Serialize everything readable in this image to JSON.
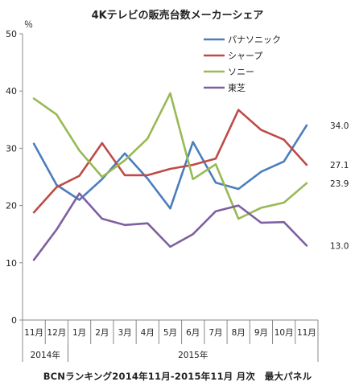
{
  "chart_data": {
    "type": "line",
    "title": "4Kテレビの販売台数メーカーシェア",
    "ylabel": "％",
    "ylim": [
      0,
      50
    ],
    "yticks": [
      0,
      10,
      20,
      30,
      40,
      50
    ],
    "categories": [
      "11月",
      "12月",
      "1月",
      "2月",
      "3月",
      "4月",
      "5月",
      "6月",
      "7月",
      "8月",
      "9月",
      "10月",
      "11月"
    ],
    "year_groups": [
      {
        "label": "2014年",
        "start": 0,
        "end": 1
      },
      {
        "label": "2015年",
        "start": 2,
        "end": 12
      }
    ],
    "grid": false,
    "legend_position": "top-right",
    "series": [
      {
        "name": "パナソニック",
        "color": "#4a7ebb",
        "values": [
          30.8,
          23.6,
          21.0,
          24.6,
          29.1,
          24.7,
          19.5,
          31.1,
          24.0,
          22.9,
          25.9,
          27.7,
          34.0
        ],
        "end_label": "34.0"
      },
      {
        "name": "シャープ",
        "color": "#be4b48",
        "values": [
          18.8,
          23.2,
          25.2,
          30.9,
          25.3,
          25.3,
          26.4,
          27.1,
          28.2,
          36.7,
          33.2,
          31.5,
          27.1
        ],
        "end_label": "27.1"
      },
      {
        "name": "ソニー",
        "color": "#98b954",
        "values": [
          38.7,
          35.9,
          29.6,
          25.0,
          27.9,
          31.7,
          39.6,
          24.6,
          27.2,
          17.7,
          19.6,
          20.5,
          23.9
        ],
        "end_label": "23.9"
      },
      {
        "name": "東芝",
        "color": "#7d60a0",
        "values": [
          10.5,
          15.8,
          22.1,
          17.7,
          16.6,
          16.9,
          12.8,
          15.0,
          19.0,
          20.0,
          17.0,
          17.1,
          13.0
        ],
        "end_label": "13.0"
      }
    ]
  },
  "footer": "BCNランキング2014年11月-2015年11月 月次　最大パネル"
}
